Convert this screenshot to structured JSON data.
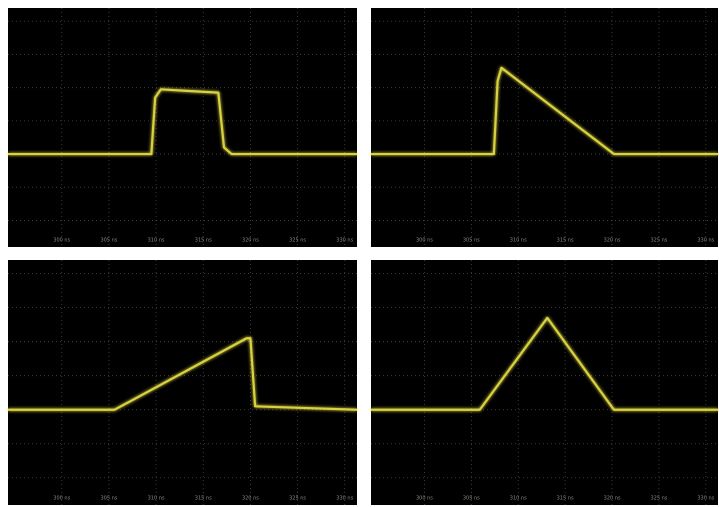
{
  "chart_data": [
    {
      "type": "line",
      "color": "#d9d23c",
      "xlim": [
        294.3,
        331.3
      ],
      "ylim": [
        -2.8,
        4.4
      ],
      "xticks": [
        {
          "value": 300,
          "label": "300 ns"
        },
        {
          "value": 305,
          "label": "305 ns"
        },
        {
          "value": 310,
          "label": "310 ns"
        },
        {
          "value": 315,
          "label": "315 ns"
        },
        {
          "value": 320,
          "label": "320 ns"
        },
        {
          "value": 325,
          "label": "325 ns"
        },
        {
          "value": 330,
          "label": "330 ns"
        }
      ],
      "yticks": [
        -2,
        -1,
        0,
        1,
        2,
        3,
        4
      ],
      "grid": true,
      "x": [
        294.3,
        309.5,
        309.9,
        310.5,
        313.5,
        316.6,
        317.2,
        318,
        331.3
      ],
      "values": [
        0,
        0,
        1.7,
        1.95,
        1.9,
        1.85,
        0.2,
        0,
        0
      ]
    },
    {
      "type": "line",
      "color": "#d9d23c",
      "xlim": [
        294.3,
        331.3
      ],
      "ylim": [
        -2.8,
        4.4
      ],
      "xticks": [
        {
          "value": 300,
          "label": "300 ns"
        },
        {
          "value": 305,
          "label": "305 ns"
        },
        {
          "value": 310,
          "label": "310 ns"
        },
        {
          "value": 315,
          "label": "315 ns"
        },
        {
          "value": 320,
          "label": "320 ns"
        },
        {
          "value": 325,
          "label": "325 ns"
        },
        {
          "value": 330,
          "label": "330 ns"
        }
      ],
      "yticks": [
        -2,
        -1,
        0,
        1,
        2,
        3,
        4
      ],
      "grid": true,
      "x": [
        294.3,
        307.4,
        307.8,
        308.2,
        320.2,
        331.3
      ],
      "values": [
        0,
        0,
        2.2,
        2.6,
        0,
        0
      ]
    },
    {
      "type": "line",
      "color": "#d9d23c",
      "xlim": [
        294.3,
        331.3
      ],
      "ylim": [
        -2.8,
        4.4
      ],
      "xticks": [
        {
          "value": 300,
          "label": "300 ns"
        },
        {
          "value": 305,
          "label": "305 ns"
        },
        {
          "value": 310,
          "label": "310 ns"
        },
        {
          "value": 315,
          "label": "315 ns"
        },
        {
          "value": 320,
          "label": "320 ns"
        },
        {
          "value": 325,
          "label": "325 ns"
        },
        {
          "value": 330,
          "label": "330 ns"
        }
      ],
      "yticks": [
        -2,
        -1,
        0,
        1,
        2,
        3,
        4
      ],
      "grid": true,
      "x": [
        294.3,
        305.6,
        319.6,
        320.0,
        320.5,
        331.3
      ],
      "values": [
        0,
        0,
        2.1,
        2.1,
        0.1,
        0
      ]
    },
    {
      "type": "line",
      "color": "#d9d23c",
      "xlim": [
        294.3,
        331.3
      ],
      "ylim": [
        -2.8,
        4.4
      ],
      "xticks": [
        {
          "value": 300,
          "label": "300 ns"
        },
        {
          "value": 305,
          "label": "305 ns"
        },
        {
          "value": 310,
          "label": "310 ns"
        },
        {
          "value": 315,
          "label": "315 ns"
        },
        {
          "value": 320,
          "label": "320 ns"
        },
        {
          "value": 325,
          "label": "325 ns"
        },
        {
          "value": 330,
          "label": "330 ns"
        }
      ],
      "yticks": [
        -2,
        -1,
        0,
        1,
        2,
        3,
        4
      ],
      "grid": true,
      "x": [
        294.3,
        305.9,
        313.1,
        320.2,
        331.3
      ],
      "values": [
        0,
        0,
        2.7,
        0,
        0
      ]
    }
  ]
}
